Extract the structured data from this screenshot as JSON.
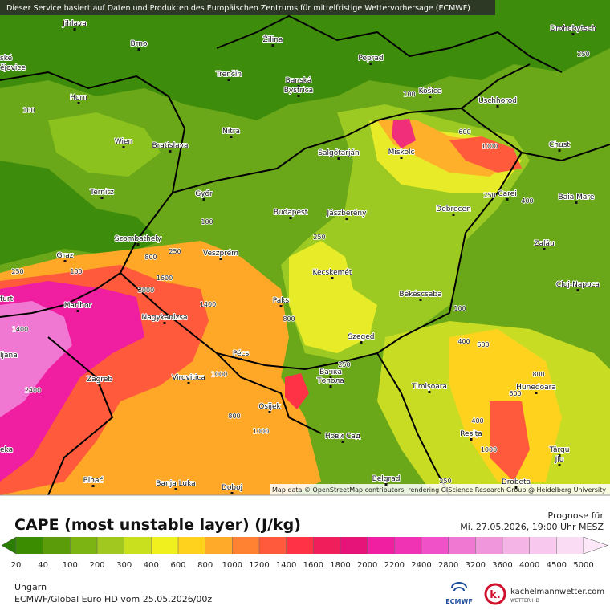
{
  "header": {
    "notice": "Dieser Service basiert auf Daten und Produkten des Europäischen Zentrums für mittelfristige Wettervorhersage (ECMWF)"
  },
  "map": {
    "places": [
      "Jihlava",
      "Brno",
      "Žilina",
      "Poprad",
      "Drohobytsch",
      "ské",
      "ějovice",
      "Trenčín",
      "Banská",
      "Bystrica",
      "Horn",
      "Košice",
      "Uschhorod",
      "Nitra",
      "Wien",
      "Bratislava",
      "Salgótarján",
      "Miskolc",
      "Chust",
      "Ternitz",
      "Győr",
      "Budapest",
      "Jászberény",
      "Debrecen",
      "Carei",
      "Baia Mare",
      "Szombathely",
      "Veszprém",
      "Zalău",
      "Graz",
      "Kecskemét",
      "Cluj-Napoca",
      "furt",
      "Maribor",
      "Paks",
      "Békéscsaba",
      "Nagykanizsa",
      "Szeged",
      "ljana",
      "Pécs",
      "Zagreb",
      "Virovitica",
      "Бачка",
      "Топола",
      "Timișoara",
      "Hunedoara",
      "Osijek",
      "Нови Сад",
      "Reșița",
      "Târgu",
      "Jiu",
      "eka",
      "Bihać",
      "Banja Luka",
      "Doboj",
      "Belgrad",
      "Drobeta"
    ],
    "contour_labels": [
      "100",
      "250",
      "100",
      "600",
      "1000",
      "250",
      "400",
      "100",
      "250",
      "800",
      "250",
      "1600",
      "2000",
      "1400",
      "800",
      "100",
      "400",
      "600",
      "250",
      "1000",
      "800",
      "1000",
      "800",
      "600",
      "400",
      "1000",
      "2400",
      "1400",
      "250",
      "100",
      "250"
    ],
    "attribution": "Map data © OpenStreetMap contributors, rendering GIScience Research Group @ Heidelberg University"
  },
  "legend": {
    "title": "CAPE (most unstable layer) (J/kg)",
    "forecast_label": "Prognose für",
    "forecast_time": "Mi. 27.05.2026, 19:00 Uhr MESZ",
    "labels": [
      20,
      40,
      100,
      200,
      300,
      400,
      600,
      800,
      1000,
      1200,
      1400,
      1600,
      1800,
      2000,
      2200,
      2400,
      2800,
      3200,
      3600,
      4000,
      4500,
      5000
    ],
    "colors": [
      "#2a7d00",
      "#3c8c00",
      "#5a9c0a",
      "#7cb414",
      "#a0c81e",
      "#c8e01e",
      "#f0f01e",
      "#ffd21e",
      "#ffaa28",
      "#ff8232",
      "#ff5a3c",
      "#ff3246",
      "#f01e5a",
      "#e61478",
      "#f01ea0",
      "#f032b4",
      "#f050c8",
      "#f078d2",
      "#f096dc",
      "#f5b4e6",
      "#f8c8ee",
      "#fadcf4",
      "#fce8f8"
    ]
  },
  "footer": {
    "region": "Ungarn",
    "model": "ECMWF/Global Euro HD vom 25.05.2026/00z",
    "ecmwf": "ECMWF",
    "brand_icon": "k.",
    "brand": "kachelmannwetter.com",
    "brand_sub": "WETTER HD"
  }
}
